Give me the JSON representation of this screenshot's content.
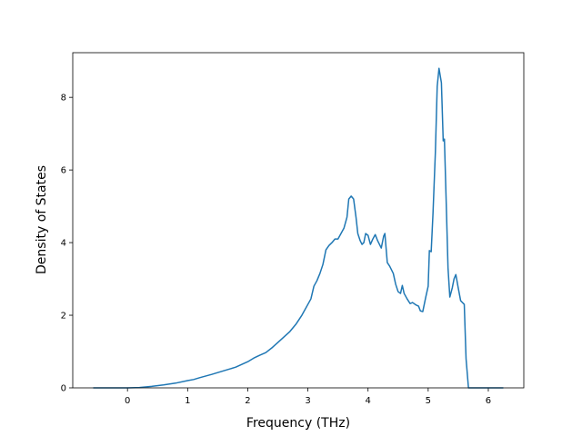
{
  "chart_data": {
    "type": "line",
    "xlabel": "Frequency (THz)",
    "ylabel": "Density of States",
    "xlim": [
      -0.91,
      6.59
    ],
    "ylim": [
      0,
      9.23
    ],
    "xticks": [
      0,
      1,
      2,
      3,
      4,
      5,
      6
    ],
    "yticks": [
      0,
      2,
      4,
      6,
      8
    ],
    "series": [
      {
        "color": "#1f77b4",
        "x": [
          -0.57,
          -0.2,
          0.0,
          0.2,
          0.4,
          0.6,
          0.8,
          1.0,
          1.1,
          1.2,
          1.4,
          1.6,
          1.8,
          2.0,
          2.1,
          2.2,
          2.3,
          2.4,
          2.5,
          2.6,
          2.7,
          2.8,
          2.9,
          3.0,
          3.05,
          3.1,
          3.15,
          3.2,
          3.25,
          3.3,
          3.35,
          3.4,
          3.45,
          3.5,
          3.55,
          3.6,
          3.65,
          3.68,
          3.72,
          3.76,
          3.8,
          3.83,
          3.87,
          3.9,
          3.93,
          3.96,
          4.0,
          4.04,
          4.08,
          4.12,
          4.16,
          4.22,
          4.26,
          4.28,
          4.32,
          4.36,
          4.42,
          4.46,
          4.5,
          4.54,
          4.57,
          4.6,
          4.65,
          4.7,
          4.74,
          4.8,
          4.84,
          4.87,
          4.91,
          4.96,
          5.0,
          5.02,
          5.05,
          5.08,
          5.12,
          5.15,
          5.18,
          5.22,
          5.25,
          5.27,
          5.3,
          5.33,
          5.36,
          5.4,
          5.43,
          5.46,
          5.5,
          5.54,
          5.6,
          5.63,
          5.67,
          6.0,
          6.25
        ],
        "values": [
          0,
          0,
          0,
          0.01,
          0.04,
          0.08,
          0.13,
          0.2,
          0.23,
          0.28,
          0.37,
          0.47,
          0.57,
          0.72,
          0.82,
          0.9,
          0.97,
          1.1,
          1.25,
          1.4,
          1.55,
          1.75,
          2.0,
          2.3,
          2.45,
          2.8,
          2.95,
          3.15,
          3.4,
          3.8,
          3.92,
          4.0,
          4.1,
          4.1,
          4.25,
          4.4,
          4.7,
          5.2,
          5.28,
          5.2,
          4.7,
          4.25,
          4.05,
          3.95,
          4.0,
          4.25,
          4.2,
          3.95,
          4.1,
          4.22,
          4.05,
          3.85,
          4.18,
          4.25,
          3.45,
          3.35,
          3.15,
          2.85,
          2.65,
          2.6,
          2.82,
          2.6,
          2.45,
          2.32,
          2.35,
          2.28,
          2.25,
          2.12,
          2.1,
          2.5,
          2.8,
          3.78,
          3.75,
          4.8,
          6.5,
          8.3,
          8.8,
          8.4,
          6.8,
          6.85,
          5.1,
          3.3,
          2.5,
          2.75,
          3.0,
          3.12,
          2.75,
          2.4,
          2.3,
          0.8,
          0,
          0,
          0
        ]
      }
    ]
  }
}
